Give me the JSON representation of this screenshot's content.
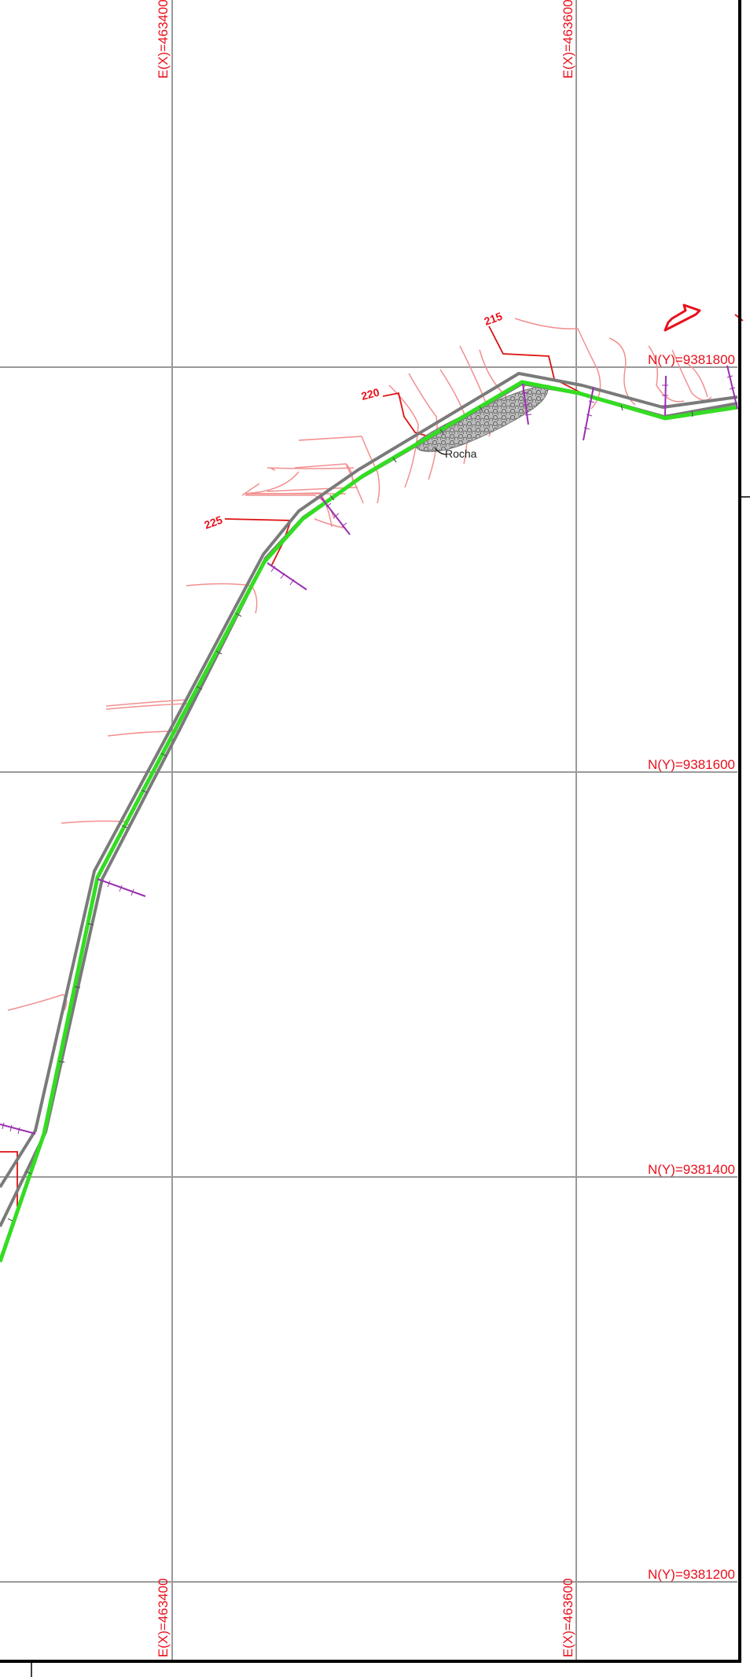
{
  "map": {
    "grid": {
      "easting_labels": [
        "E(X)=463400",
        "E(X)=463600"
      ],
      "northing_labels": [
        "N(Y)=9381800",
        "N(Y)=9381600",
        "N(Y)=9381400",
        "N(Y)=9381200"
      ]
    },
    "contours": [
      {
        "id": "c215",
        "label": "215"
      },
      {
        "id": "c220",
        "label": "220"
      },
      {
        "id": "c225",
        "label": "225"
      }
    ],
    "feature": {
      "label": "Rocha"
    },
    "colors": {
      "grid": "#9a9a9a",
      "grid_labels": "#e8101c",
      "contour_major": "#dd1111",
      "contour_minor": "#f28f8f",
      "road_edge": "#7a7a7a",
      "alignment": "#33dd22",
      "sections": "#9b2fb0",
      "border": "#000000",
      "rock": "#8a8a8a"
    },
    "icons": {
      "north_arrow": "north-arrow-icon"
    }
  }
}
